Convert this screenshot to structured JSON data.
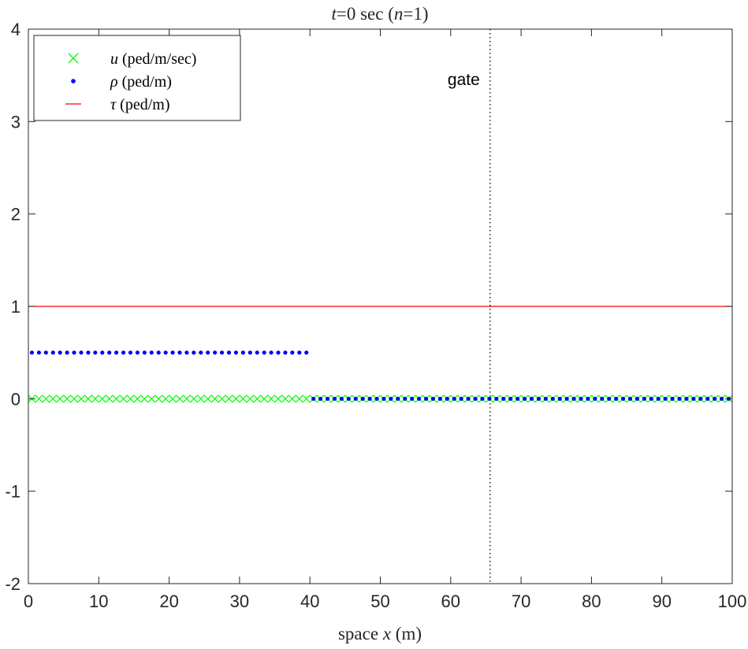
{
  "chart_data": {
    "type": "line",
    "title": {
      "parts": [
        {
          "text": "t",
          "italic": true
        },
        {
          "text": "=0 sec (",
          "italic": false
        },
        {
          "text": "n",
          "italic": true
        },
        {
          "text": "=1)",
          "italic": false
        }
      ]
    },
    "xlabel": {
      "parts": [
        {
          "text": "space ",
          "italic": false
        },
        {
          "text": "x",
          "italic": true
        },
        {
          "text": " (m)",
          "italic": false
        }
      ]
    },
    "ylabel": "",
    "xlim": [
      0,
      100
    ],
    "ylim": [
      -2,
      4
    ],
    "xticks": [
      0,
      10,
      20,
      30,
      40,
      50,
      60,
      70,
      80,
      90,
      100
    ],
    "yticks": [
      -2,
      -1,
      0,
      1,
      2,
      3,
      4
    ],
    "grid": false,
    "legend_position": "top-left",
    "series": [
      {
        "symbol": "u",
        "unit": "(ped/m/sec)",
        "marker": "x",
        "color": "#00ff00",
        "x_start": 0.5,
        "x_end": 99.5,
        "x_step": 1,
        "segments": [
          {
            "from": 0.5,
            "to": 99.5,
            "y": 0
          }
        ]
      },
      {
        "symbol": "ρ",
        "unit": "(ped/m)",
        "marker": "dot",
        "color": "#0000ff",
        "x_start": 0.5,
        "x_end": 99.5,
        "x_step": 1,
        "segments": [
          {
            "from": 0.5,
            "to": 39.5,
            "y": 0.5
          },
          {
            "from": 40.5,
            "to": 99.5,
            "y": 0
          }
        ]
      },
      {
        "symbol": "τ",
        "unit": "(ped/m)",
        "marker": "line",
        "color": "#ff0000",
        "x": [
          0,
          100
        ],
        "y": [
          1,
          1
        ]
      }
    ],
    "annotations": [
      {
        "type": "vline",
        "x": 65.6,
        "style": "dotted",
        "color": "#000000",
        "label": "gate"
      }
    ]
  }
}
